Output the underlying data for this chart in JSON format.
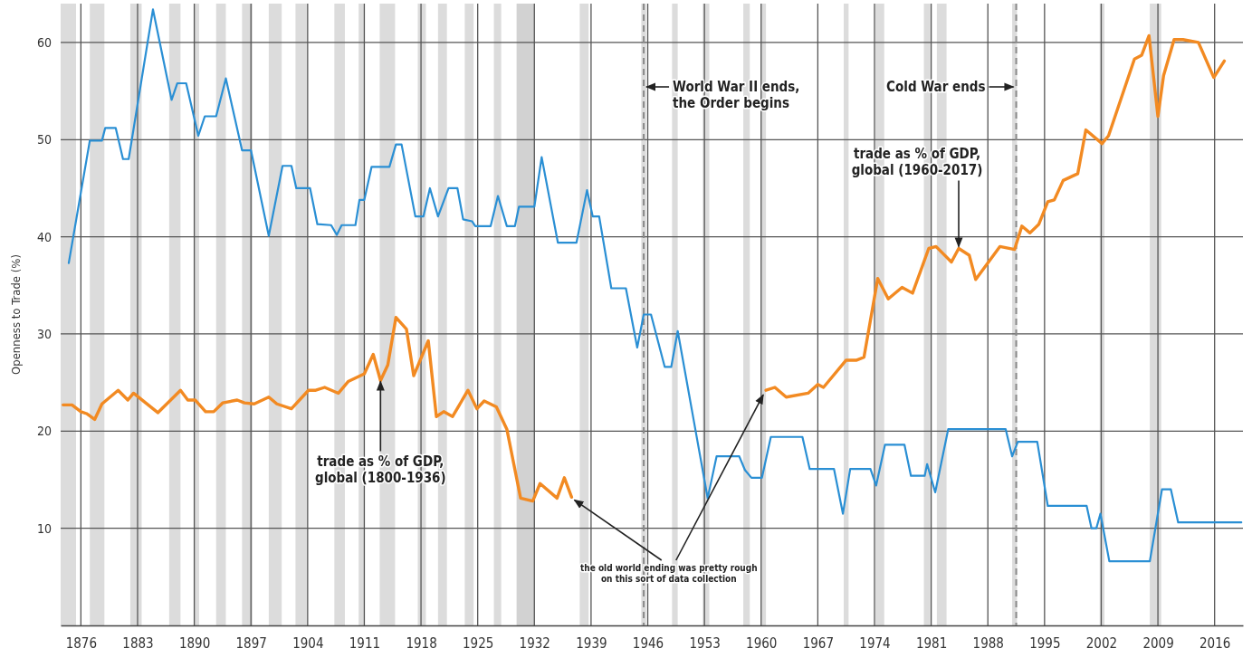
{
  "chart_data": {
    "type": "line",
    "ylabel": "Openness to Trade (%)",
    "xlim": [
      1873.5,
      2019.5
    ],
    "ylim": [
      0,
      64
    ],
    "xticks": [
      1876,
      1883,
      1890,
      1897,
      1904,
      1911,
      1918,
      1925,
      1932,
      1939,
      1946,
      1953,
      1960,
      1967,
      1974,
      1981,
      1988,
      1995,
      2002,
      2009,
      2016
    ],
    "yticks": [
      10,
      20,
      30,
      40,
      50,
      60
    ],
    "grid": true,
    "series": [
      {
        "color": "#2a8fd4",
        "x": [
          1874.5,
          1877.1,
          1878.6,
          1879.0,
          1880.3,
          1881.2,
          1881.9,
          1884.9,
          1887.2,
          1887.9,
          1889.0,
          1890.5,
          1891.3,
          1892.7,
          1893.9,
          1895.9,
          1897.0,
          1899.2,
          1900.9,
          1902.0,
          1902.6,
          1904.3,
          1905.2,
          1906.9,
          1907.6,
          1908.2,
          1909.9,
          1910.4,
          1911.0,
          1911.9,
          1914.1,
          1914.9,
          1915.6,
          1917.3,
          1918.3,
          1919.1,
          1920.1,
          1921.4,
          1922.5,
          1923.2,
          1924.3,
          1924.7,
          1926.6,
          1927.5,
          1928.6,
          1929.6,
          1930.1,
          1932.0,
          1932.9,
          1934.9,
          1937.2,
          1938.5,
          1939.2,
          1940.0,
          1941.5,
          1943.3,
          1944.7,
          1945.5,
          1946.4,
          1948.1,
          1948.9,
          1949.7,
          1953.4,
          1954.5,
          1957.3,
          1958.0,
          1958.8,
          1960.1,
          1961.2,
          1965.1,
          1966.0,
          1969.0,
          1970.1,
          1971.0,
          1973.5,
          1974.2,
          1975.3,
          1977.7,
          1978.5,
          1980.2,
          1980.5,
          1981.5,
          1983.1,
          1990.2,
          1991.0,
          1991.7,
          1994.1,
          1995.4,
          2000.2,
          2000.8,
          2001.4,
          2001.9,
          2003.0,
          2008.0,
          2009.5,
          2010.6,
          2011.5,
          2019.3
        ],
        "values": [
          37.3,
          49.9,
          49.9,
          51.2,
          51.2,
          48.0,
          48.0,
          63.4,
          54.1,
          55.8,
          55.8,
          50.4,
          52.4,
          52.4,
          56.3,
          48.9,
          48.9,
          40.1,
          47.3,
          47.3,
          45.0,
          45.0,
          41.3,
          41.2,
          40.2,
          41.2,
          41.2,
          43.8,
          43.8,
          47.2,
          47.2,
          49.5,
          49.5,
          42.1,
          42.1,
          45.0,
          42.1,
          45.0,
          45.0,
          41.8,
          41.6,
          41.1,
          41.1,
          44.2,
          41.1,
          41.1,
          43.1,
          43.1,
          48.2,
          39.4,
          39.4,
          44.8,
          42.1,
          42.1,
          34.7,
          34.7,
          28.6,
          32.0,
          32.0,
          26.6,
          26.6,
          30.3,
          13.1,
          17.4,
          17.4,
          16.0,
          15.2,
          15.2,
          19.4,
          19.4,
          16.1,
          16.1,
          11.5,
          16.1,
          16.1,
          14.4,
          18.6,
          18.6,
          15.4,
          15.4,
          16.6,
          13.7,
          20.2,
          20.2,
          17.4,
          18.9,
          18.9,
          12.3,
          12.3,
          10.0,
          10.0,
          11.5,
          6.6,
          6.6,
          14.0,
          14.0,
          10.6,
          10.6
        ]
      },
      {
        "color": "#f28a22",
        "x": [
          1873.8,
          1874.9,
          1876.0,
          1876.7,
          1877.7,
          1878.6,
          1880.6,
          1881.8,
          1882.5,
          1885.5,
          1888.3,
          1889.2,
          1890.1,
          1891.4,
          1892.4,
          1893.5,
          1895.3,
          1896.2,
          1897.4,
          1899.2,
          1900.2,
          1902.0,
          1904.1,
          1905.0,
          1906.1,
          1907.8,
          1909.0,
          1911.0,
          1912.1,
          1913.0,
          1913.9,
          1914.9,
          1916.2,
          1917.1,
          1918.9,
          1919.9,
          1920.8,
          1921.9,
          1923.8,
          1924.9,
          1925.8,
          1927.3,
          1928.6,
          1930.3,
          1931.8,
          1932.7,
          1934.8,
          1935.7,
          1936.6,
          1948,
          1960.6,
          1961.7,
          1963.1,
          1965.8,
          1967.0,
          1967.7,
          1970.5,
          1971.8,
          1972.7,
          1974.4,
          1975.7,
          1977.4,
          1978.7,
          1980.7,
          1981.6,
          1983.5,
          1984.4,
          1985.7,
          1986.5,
          1989.5,
          1991.3,
          1992.2,
          1993.2,
          1994.3,
          1995.4,
          1996.2,
          1997.3,
          1999.1,
          2000.1,
          2002.1,
          2002.9,
          2006.1,
          2007.0,
          2007.9,
          2009.0,
          2009.7,
          2011.0,
          2012.1,
          2014.0,
          2015.9,
          2017.2
        ],
        "values": [
          22.7,
          22.7,
          22.0,
          21.8,
          21.2,
          22.8,
          24.2,
          23.2,
          23.9,
          21.9,
          24.2,
          23.2,
          23.2,
          22.0,
          22.0,
          22.9,
          23.2,
          22.9,
          22.8,
          23.5,
          22.8,
          22.3,
          24.2,
          24.2,
          24.5,
          23.9,
          25.1,
          25.9,
          27.9,
          25.2,
          26.8,
          31.7,
          30.5,
          25.7,
          29.3,
          21.5,
          22.0,
          21.5,
          24.2,
          22.3,
          23.1,
          22.5,
          20.2,
          13.1,
          12.8,
          14.6,
          13.1,
          15.2,
          13.2,
          null,
          24.2,
          24.5,
          23.5,
          23.9,
          24.8,
          24.5,
          27.3,
          27.3,
          27.6,
          35.7,
          33.6,
          34.8,
          34.2,
          38.8,
          39.0,
          37.4,
          38.8,
          38.1,
          35.6,
          39.0,
          38.7,
          41.1,
          40.4,
          41.3,
          43.6,
          43.8,
          45.8,
          46.5,
          51.0,
          49.6,
          50.4,
          58.3,
          58.7,
          60.7,
          52.4,
          56.6,
          60.3,
          60.3,
          60.0,
          56.4,
          58.1
        ]
      }
    ],
    "bands": [
      {
        "axis": "x",
        "from": 1873.5,
        "to": 1875.4,
        "color": "#dcdcdc"
      },
      {
        "axis": "x",
        "from": 1877.1,
        "to": 1878.9,
        "color": "#dcdcdc"
      },
      {
        "axis": "x",
        "from": 1882.1,
        "to": 1883.5,
        "color": "#dcdcdc"
      },
      {
        "axis": "x",
        "from": 1886.9,
        "to": 1888.3,
        "color": "#dcdcdc"
      },
      {
        "axis": "x",
        "from": 1890.0,
        "to": 1890.6,
        "color": "#dcdcdc"
      },
      {
        "axis": "x",
        "from": 1892.7,
        "to": 1893.9,
        "color": "#dcdcdc"
      },
      {
        "axis": "x",
        "from": 1895.9,
        "to": 1897.2,
        "color": "#dcdcdc"
      },
      {
        "axis": "x",
        "from": 1899.2,
        "to": 1900.8,
        "color": "#dcdcdc"
      },
      {
        "axis": "x",
        "from": 1902.5,
        "to": 1903.9,
        "color": "#dcdcdc"
      },
      {
        "axis": "x",
        "from": 1907.3,
        "to": 1908.6,
        "color": "#dcdcdc"
      },
      {
        "axis": "x",
        "from": 1910.3,
        "to": 1911.0,
        "color": "#dcdcdc"
      },
      {
        "axis": "x",
        "from": 1912.9,
        "to": 1914.8,
        "color": "#dcdcdc"
      },
      {
        "axis": "x",
        "from": 1917.6,
        "to": 1918.6,
        "color": "#dcdcdc"
      },
      {
        "axis": "x",
        "from": 1920.1,
        "to": 1921.2,
        "color": "#dcdcdc"
      },
      {
        "axis": "x",
        "from": 1923.4,
        "to": 1924.5,
        "color": "#dcdcdc"
      },
      {
        "axis": "x",
        "from": 1927.0,
        "to": 1927.9,
        "color": "#dcdcdc"
      },
      {
        "axis": "x",
        "from": 1929.8,
        "to": 1932.0,
        "color": "#d2d2d2"
      },
      {
        "axis": "x",
        "from": 1937.6,
        "to": 1938.7,
        "color": "#dcdcdc"
      },
      {
        "axis": "x",
        "from": 1945.2,
        "to": 1945.8,
        "color": "#dcdcdc"
      },
      {
        "axis": "x",
        "from": 1949.0,
        "to": 1949.7,
        "color": "#dcdcdc"
      },
      {
        "axis": "x",
        "from": 1952.8,
        "to": 1953.6,
        "color": "#dcdcdc"
      },
      {
        "axis": "x",
        "from": 1957.8,
        "to": 1958.6,
        "color": "#dcdcdc"
      },
      {
        "axis": "x",
        "from": 1960.0,
        "to": 1960.6,
        "color": "#dcdcdc"
      },
      {
        "axis": "x",
        "from": 1970.2,
        "to": 1970.8,
        "color": "#dcdcdc"
      },
      {
        "axis": "x",
        "from": 1974.1,
        "to": 1975.2,
        "color": "#dcdcdc"
      },
      {
        "axis": "x",
        "from": 1980.1,
        "to": 1980.9,
        "color": "#dcdcdc"
      },
      {
        "axis": "x",
        "from": 1981.7,
        "to": 1982.9,
        "color": "#dcdcdc"
      },
      {
        "axis": "x",
        "from": 1991.0,
        "to": 1991.6,
        "color": "#dcdcdc"
      },
      {
        "axis": "x",
        "from": 2001.8,
        "to": 2002.4,
        "color": "#dcdcdc"
      },
      {
        "axis": "x",
        "from": 2008.0,
        "to": 2009.4,
        "color": "#dcdcdc"
      }
    ],
    "ref_lines": [
      {
        "axis": "x",
        "value": 1945.5,
        "label": "World War II ends,\nthe Order begins",
        "color": "#8a8a8a",
        "line_style": "dashed"
      },
      {
        "axis": "x",
        "value": 1991.5,
        "label": "Cold War ends",
        "color": "#8a8a8a",
        "line_style": "dashed"
      }
    ],
    "annotations": [
      {
        "text": "trade as % of GDP,\nglobal (1800-1936)",
        "x": 1913.0,
        "y": 25.2
      },
      {
        "text": "trade as % of GDP,\nglobal (1960-2017)",
        "x": 1984.4,
        "y": 38.8
      },
      {
        "text": "the old world ending was pretty rough\non this sort of data collection",
        "x": 1936.6,
        "y": 13.2
      }
    ]
  }
}
